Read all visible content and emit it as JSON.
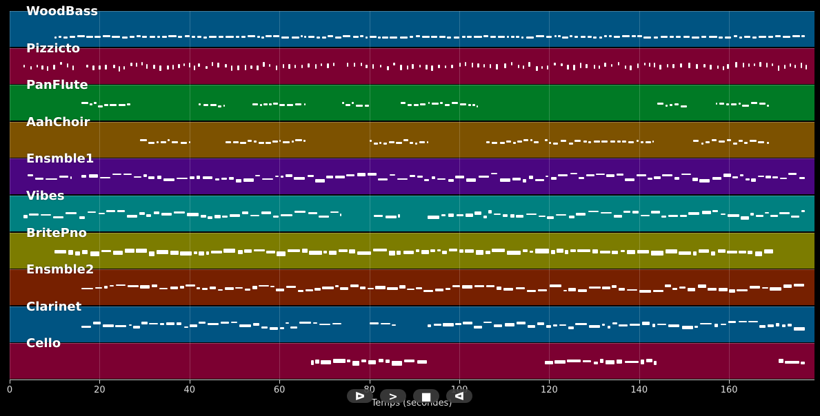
{
  "chart_data": {
    "type": "pianoroll",
    "title": "",
    "xlabel": "Temps (secondes)",
    "ylabel": "",
    "xlim": [
      0,
      178
    ],
    "xticks": [
      0,
      20,
      40,
      60,
      80,
      100,
      120,
      140,
      160
    ],
    "grid": true,
    "tracks": [
      {
        "name": "WoodBass",
        "color": "#005482",
        "segments": [
          [
            10,
            177
          ]
        ],
        "style": "bass"
      },
      {
        "name": "Pizzicto",
        "color": "#7c0031",
        "segments": [
          [
            3,
            15
          ],
          [
            17,
            72
          ],
          [
            75,
            177
          ]
        ],
        "style": "pizz"
      },
      {
        "name": "PanFlute",
        "color": "#007a25",
        "segments": [
          [
            16,
            27
          ],
          [
            42,
            48
          ],
          [
            54,
            66
          ],
          [
            74,
            80
          ],
          [
            87,
            104
          ],
          [
            144,
            151
          ],
          [
            157,
            169
          ]
        ],
        "style": "melody"
      },
      {
        "name": "AahChoir",
        "color": "#7d5200",
        "segments": [
          [
            29,
            40
          ],
          [
            48,
            66
          ],
          [
            80,
            93
          ],
          [
            106,
            118
          ],
          [
            119,
            143
          ],
          [
            152,
            169
          ]
        ],
        "style": "melody"
      },
      {
        "name": "Ensmble1",
        "color": "#4a0680",
        "segments": [
          [
            4,
            14
          ],
          [
            16,
            177
          ]
        ],
        "style": "dense"
      },
      {
        "name": "Vibes",
        "color": "#008080",
        "segments": [
          [
            3,
            74
          ],
          [
            81,
            87
          ],
          [
            93,
            177
          ]
        ],
        "style": "dense"
      },
      {
        "name": "BritePno",
        "color": "#7c7c00",
        "segments": [
          [
            10,
            170
          ]
        ],
        "style": "block"
      },
      {
        "name": "Ensmble2",
        "color": "#762000",
        "segments": [
          [
            16,
            177
          ]
        ],
        "style": "dense"
      },
      {
        "name": "Clarinet",
        "color": "#005482",
        "segments": [
          [
            16,
            74
          ],
          [
            80,
            86
          ],
          [
            93,
            177
          ]
        ],
        "style": "dense"
      },
      {
        "name": "Cello",
        "color": "#7c0031",
        "segments": [
          [
            67,
            93
          ],
          [
            119,
            144
          ],
          [
            171,
            177
          ]
        ],
        "style": "block"
      }
    ]
  },
  "controls": [
    {
      "name": "play-forward-button",
      "icon": "play-outline-icon",
      "symbol": "ᐅ"
    },
    {
      "name": "fast-forward-button",
      "icon": "chevron-right-icon",
      "symbol": ">"
    },
    {
      "name": "stop-button",
      "icon": "stop-icon",
      "symbol": "■"
    },
    {
      "name": "play-backward-button",
      "icon": "play-back-outline-icon",
      "symbol": "ᐊ"
    }
  ]
}
